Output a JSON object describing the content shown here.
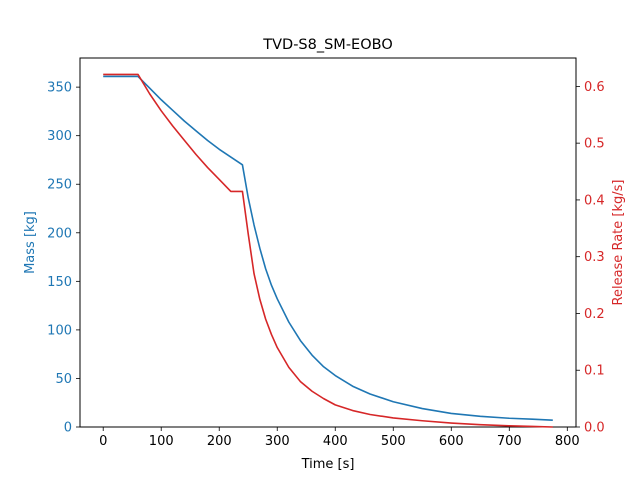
{
  "chart_data": {
    "type": "line",
    "title": "TVD-S8_SM-EOBO",
    "xlabel": "Time [s]",
    "xlim": [
      -40,
      815
    ],
    "xticks": [
      0,
      100,
      200,
      300,
      400,
      500,
      600,
      700,
      800
    ],
    "grid": false,
    "left_axis": {
      "label": "Mass [kg]",
      "color": "#1f77b4",
      "ylim": [
        0,
        380
      ],
      "ticks": [
        0,
        50,
        100,
        150,
        200,
        250,
        300,
        350
      ]
    },
    "right_axis": {
      "label": "Release Rate [kg/s]",
      "color": "#d62728",
      "ylim": [
        0,
        0.65
      ],
      "ticks": [
        0.0,
        0.1,
        0.2,
        0.3,
        0.4,
        0.5,
        0.6
      ]
    },
    "series": [
      {
        "axis": "left",
        "color": "#1f77b4",
        "x": [
          0,
          30,
          60,
          80,
          100,
          120,
          140,
          160,
          180,
          200,
          220,
          240,
          250,
          260,
          270,
          280,
          290,
          300,
          320,
          340,
          360,
          380,
          400,
          430,
          460,
          500,
          550,
          600,
          650,
          700,
          740,
          775
        ],
        "y": [
          361,
          361,
          361,
          349,
          337,
          326,
          315,
          305,
          295,
          286,
          278,
          270,
          236,
          208,
          184,
          163,
          146,
          132,
          108,
          89,
          74,
          62,
          53,
          42,
          34,
          26,
          19,
          14,
          11,
          9,
          8,
          7
        ]
      },
      {
        "axis": "right",
        "color": "#d62728",
        "x": [
          0,
          30,
          60,
          80,
          100,
          120,
          140,
          160,
          180,
          200,
          220,
          240,
          250,
          260,
          270,
          280,
          290,
          300,
          320,
          340,
          360,
          380,
          400,
          430,
          460,
          500,
          550,
          600,
          650,
          700,
          740,
          775
        ],
        "y": [
          0.621,
          0.621,
          0.621,
          0.587,
          0.557,
          0.53,
          0.505,
          0.48,
          0.457,
          0.436,
          0.415,
          0.415,
          0.34,
          0.27,
          0.225,
          0.19,
          0.163,
          0.14,
          0.105,
          0.08,
          0.063,
          0.05,
          0.039,
          0.029,
          0.022,
          0.016,
          0.011,
          0.007,
          0.004,
          0.002,
          0.001,
          0.0
        ]
      }
    ]
  }
}
